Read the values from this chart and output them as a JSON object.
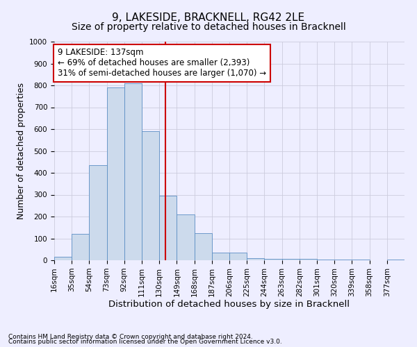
{
  "title": "9, LAKESIDE, BRACKNELL, RG42 2LE",
  "subtitle": "Size of property relative to detached houses in Bracknell",
  "xlabel": "Distribution of detached houses by size in Bracknell",
  "ylabel": "Number of detached properties",
  "footnote1": "Contains HM Land Registry data © Crown copyright and database right 2024.",
  "footnote2": "Contains public sector information licensed under the Open Government Licence v3.0.",
  "annotation_line1": "9 LAKESIDE: 137sqm",
  "annotation_line2": "← 69% of detached houses are smaller (2,393)",
  "annotation_line3": "31% of semi-detached houses are larger (1,070) →",
  "bar_color": "#ccdaec",
  "bar_edge_color": "#5b8ec4",
  "vline_color": "#cc0000",
  "vline_x": 137,
  "bin_edges": [
    16,
    35,
    54,
    73,
    92,
    111,
    130,
    149,
    168,
    187,
    206,
    225,
    244,
    263,
    282,
    301,
    320,
    339,
    358,
    377,
    396
  ],
  "bar_heights": [
    15,
    120,
    435,
    790,
    810,
    590,
    295,
    210,
    125,
    35,
    35,
    10,
    5,
    5,
    5,
    3,
    3,
    2,
    1,
    2
  ],
  "ylim": [
    0,
    1000
  ],
  "yticks": [
    0,
    100,
    200,
    300,
    400,
    500,
    600,
    700,
    800,
    900,
    1000
  ],
  "background_color": "#eeeeff",
  "grid_color": "#ccccdd",
  "title_fontsize": 11,
  "subtitle_fontsize": 10,
  "axis_label_fontsize": 9,
  "tick_fontsize": 7.5,
  "annotation_fontsize": 8.5,
  "annotation_box_color": "#ffffff",
  "annotation_box_edge": "#cc0000",
  "footnote_fontsize": 6.5
}
